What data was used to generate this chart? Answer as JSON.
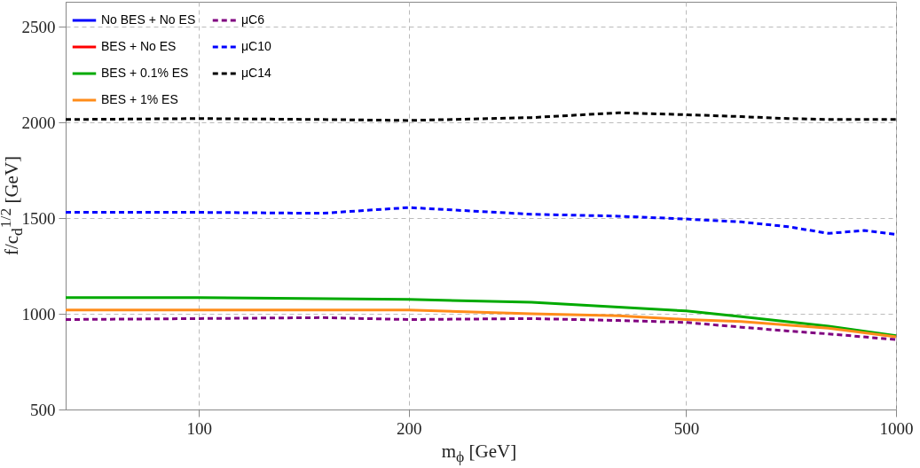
{
  "chart_data": {
    "type": "line",
    "xlabel": "m$_{ϕ}$ [GeV]",
    "ylabel": "f/c$_{d}$$^{1/2}$ [GeV]",
    "log": "x",
    "xlim": [
      64.4,
      1000
    ],
    "xticks": [
      100,
      200,
      500,
      1000
    ],
    "ylim": [
      500,
      2630
    ],
    "yticks": [
      500,
      1000,
      1500,
      2000,
      2500
    ],
    "grid": true,
    "legend": "top left",
    "series": [
      {
        "name": "No BES + No ES",
        "color": "#0000ff",
        "line_style": "solid"
      },
      {
        "name": "BES + No ES",
        "color": "#ff0000",
        "line_style": "solid"
      },
      {
        "name": "BES + 0.1% ES",
        "color": "#00aa00",
        "line_style": "solid",
        "x": [
          64.4,
          100,
          200,
          300,
          400,
          500,
          600,
          800,
          1000
        ],
        "values": [
          1085,
          1085,
          1075,
          1060,
          1035,
          1015,
          985,
          935,
          885
        ]
      },
      {
        "name": "BES + 1% ES",
        "color": "#ff8c1a",
        "line_style": "solid",
        "x": [
          64.4,
          100,
          200,
          300,
          400,
          500,
          600,
          800,
          1000
        ],
        "values": [
          1020,
          1020,
          1020,
          1000,
          990,
          970,
          960,
          925,
          880
        ]
      },
      {
        "name": "μC6",
        "color": "#800080",
        "line_style": "dashed",
        "x": [
          64.4,
          100,
          150,
          200,
          300,
          400,
          500,
          600,
          700,
          800,
          1000
        ],
        "values": [
          970,
          975,
          980,
          970,
          975,
          965,
          955,
          930,
          910,
          895,
          865
        ]
      },
      {
        "name": "μC10",
        "color": "#0000ff",
        "line_style": "dashed",
        "x": [
          64.4,
          100,
          150,
          200,
          300,
          400,
          500,
          600,
          700,
          800,
          900,
          1000
        ],
        "values": [
          1530,
          1530,
          1525,
          1555,
          1520,
          1510,
          1495,
          1480,
          1455,
          1420,
          1435,
          1415
        ]
      },
      {
        "name": "μC14",
        "color": "#000000",
        "line_style": "dashed",
        "x": [
          64.4,
          100,
          150,
          200,
          300,
          400,
          500,
          600,
          700,
          800,
          1000
        ],
        "values": [
          2015,
          2020,
          2015,
          2010,
          2025,
          2050,
          2040,
          2030,
          2020,
          2015,
          2015
        ]
      }
    ]
  }
}
